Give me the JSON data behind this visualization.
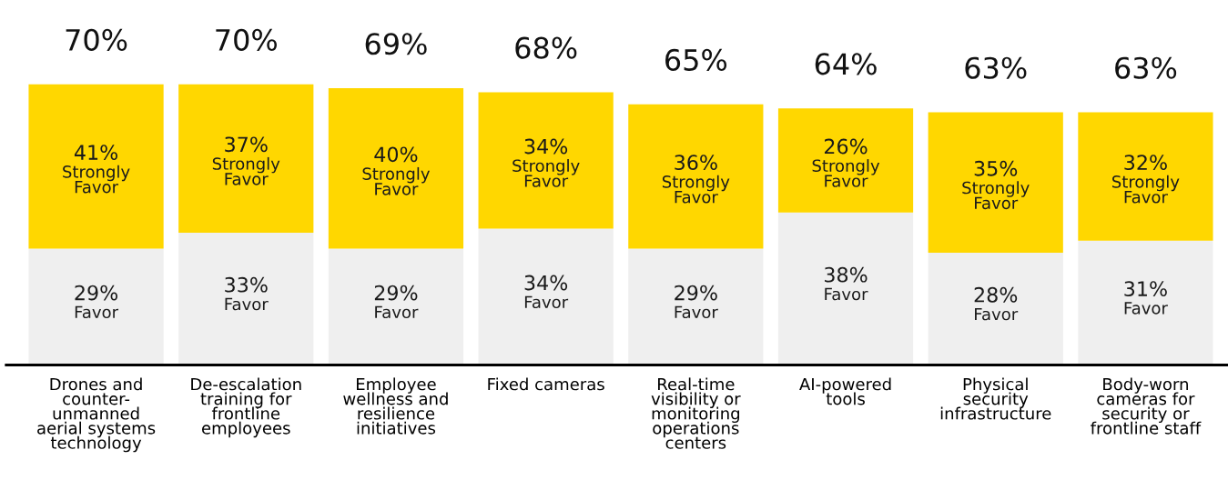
{
  "chart_data": {
    "type": "bar",
    "stacked": true,
    "legend": false,
    "categories": [
      "Drones and\ncounter-\nunmanned\naerial systems\ntechnology",
      "De-escalation\ntraining for\nfrontline\nemployees",
      "Employee\nwellness and\nresilience\ninitiatives",
      "Fixed cameras",
      "Real-time\nvisibility or\nmonitoring\noperations\ncenters",
      "AI-powered\ntools",
      "Physical\nsecurity\ninfrastructure",
      "Body-worn\ncameras for\nsecurity or\nfrontline staff"
    ],
    "series": [
      {
        "name": "Favor",
        "color": "#efefef",
        "values": [
          29,
          33,
          29,
          34,
          29,
          38,
          28,
          31
        ],
        "value_labels": [
          "29%",
          "33%",
          "29%",
          "34%",
          "29%",
          "38%",
          "28%",
          "31%"
        ]
      },
      {
        "name": "Strongly\nFavor",
        "color": "#ffd700",
        "values": [
          41,
          37,
          40,
          34,
          36,
          26,
          35,
          32
        ],
        "value_labels": [
          "41%",
          "37%",
          "40%",
          "34%",
          "36%",
          "26%",
          "35%",
          "32%"
        ]
      }
    ],
    "totals": [
      "70%",
      "70%",
      "69%",
      "68%",
      "65%",
      "64%",
      "63%",
      "63%"
    ]
  }
}
